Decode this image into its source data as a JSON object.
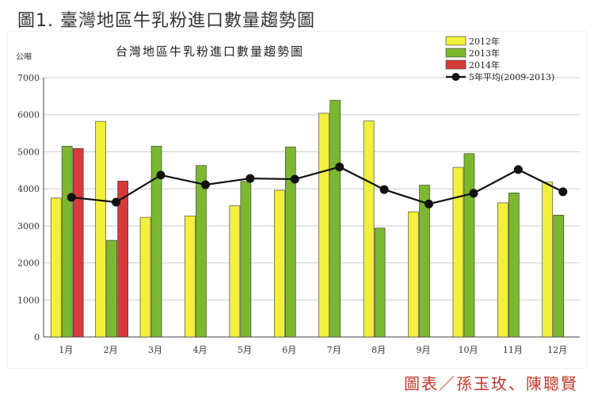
{
  "figure_title": "圖1. 臺灣地區牛乳粉進口數量趨勢圖",
  "credit": "圖表／孫玉玫、陳聰賢",
  "colors": {
    "y2012": "#f2f03c",
    "y2013": "#7cb82f",
    "y2014": "#d83a3a",
    "avg": "#111111",
    "grid": "#cccccc",
    "bar_stroke": "#333333"
  },
  "chart_data": {
    "type": "bar",
    "title": "台灣地區牛乳粉進口數量趨勢圖",
    "ylabel": "公噸",
    "xlabel": "",
    "ylim": [
      0,
      7000
    ],
    "yticks": [
      0,
      1000,
      2000,
      3000,
      4000,
      5000,
      6000,
      7000
    ],
    "categories": [
      "1月",
      "2月",
      "3月",
      "4月",
      "5月",
      "6月",
      "7月",
      "8月",
      "9月",
      "10月",
      "11月",
      "12月"
    ],
    "series": [
      {
        "name": "2012年",
        "kind": "bar",
        "values": [
          3750,
          5820,
          3230,
          3270,
          3540,
          3960,
          6040,
          5830,
          3380,
          4580,
          3620,
          4180
        ]
      },
      {
        "name": "2013年",
        "kind": "bar",
        "values": [
          5150,
          2610,
          5150,
          4630,
          4200,
          5130,
          6390,
          2940,
          4100,
          4950,
          3890,
          3290
        ]
      },
      {
        "name": "2014年",
        "kind": "bar",
        "values": [
          5090,
          4210,
          null,
          null,
          null,
          null,
          null,
          null,
          null,
          null,
          null,
          null
        ]
      },
      {
        "name": "5年平均(2009-2013)",
        "kind": "line",
        "values": [
          3770,
          3640,
          4370,
          4110,
          4280,
          4260,
          4590,
          3980,
          3590,
          3880,
          4520,
          3920
        ]
      }
    ],
    "legend_position": "top-right",
    "grid": true
  }
}
